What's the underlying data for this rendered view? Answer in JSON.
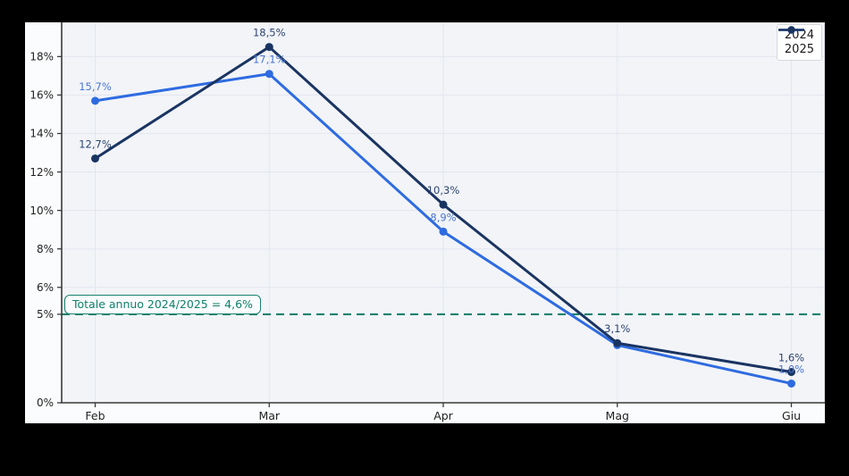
{
  "figure": {
    "background": "#fbfcfd",
    "plot_background": "#f2f4f8",
    "gridline_color": "#e3e7ee",
    "spine_dark": "#3a3a3a",
    "spine_light": "#d6dade",
    "tick_label_color": "#222222"
  },
  "legend": {
    "position": "upper right",
    "items": [
      {
        "label": "2024",
        "color": "#2e6be0"
      },
      {
        "label": "2025",
        "color": "#1a3462"
      }
    ]
  },
  "chart_data": {
    "type": "line",
    "title": "",
    "xlabel": "",
    "ylabel": "",
    "x": [
      "Feb",
      "Mar",
      "Apr",
      "Mag",
      "Giu"
    ],
    "series": [
      {
        "name": "2024",
        "color": "#2e6be0",
        "label_color": "#4a76d2",
        "values": [
          15.7,
          17.1,
          8.9,
          3.0,
          1.0
        ],
        "point_labels": [
          "15,7%",
          "17,1%",
          "8,9%",
          null,
          "1,0%"
        ]
      },
      {
        "name": "2025",
        "color": "#1a3462",
        "label_color": "#2d4570",
        "values": [
          12.7,
          18.5,
          10.3,
          3.1,
          1.6
        ],
        "point_labels": [
          "12,7%",
          "18,5%",
          "10,3%",
          "3,1%",
          "1,6%"
        ]
      }
    ],
    "yticks": [
      {
        "label": "0%",
        "value": 0
      },
      {
        "label": "5%",
        "value": 4.6
      },
      {
        "label": "6%",
        "value": 6
      },
      {
        "label": "8%",
        "value": 8
      },
      {
        "label": "10%",
        "value": 10
      },
      {
        "label": "12%",
        "value": 12
      },
      {
        "label": "14%",
        "value": 14
      },
      {
        "label": "16%",
        "value": 16
      },
      {
        "label": "18%",
        "value": 18
      }
    ],
    "ylim": [
      0,
      19.78
    ],
    "grid": true,
    "legend_position": "upper right",
    "threshold": {
      "value": 4.6,
      "color": "#18816f",
      "style": "dashed",
      "label": "Totale annuo 2024/2025 = 4,6%"
    }
  }
}
